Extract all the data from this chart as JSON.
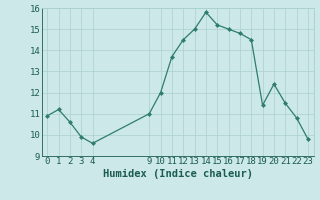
{
  "x": [
    0,
    1,
    2,
    3,
    4,
    9,
    10,
    11,
    12,
    13,
    14,
    15,
    16,
    17,
    18,
    19,
    20,
    21,
    22,
    23
  ],
  "y": [
    10.9,
    11.2,
    10.6,
    9.9,
    9.6,
    11.0,
    12.0,
    13.7,
    14.5,
    15.0,
    15.8,
    15.2,
    15.0,
    14.8,
    14.5,
    11.4,
    12.4,
    11.5,
    10.8,
    9.8
  ],
  "line_color": "#2e7d6e",
  "marker": "D",
  "marker_size": 2,
  "bg_color": "#cce8e8",
  "grid_color": "#aacfcf",
  "xlabel": "Humidex (Indice chaleur)",
  "ylim": [
    9,
    16
  ],
  "xlim": [
    -0.5,
    23.5
  ],
  "yticks": [
    9,
    10,
    11,
    12,
    13,
    14,
    15,
    16
  ],
  "xticks": [
    0,
    1,
    2,
    3,
    4,
    9,
    10,
    11,
    12,
    13,
    14,
    15,
    16,
    17,
    18,
    19,
    20,
    21,
    22,
    23
  ],
  "xlabel_fontsize": 7.5,
  "tick_fontsize": 6.5,
  "xlabel_color": "#1a5c50",
  "tick_color": "#1a5c50"
}
